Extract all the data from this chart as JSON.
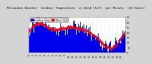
{
  "title": "Milwaukee Weather Outdoor Temperature vs Wind Chill per Minute (24 Hours)",
  "bg_color": "#d4d4d4",
  "plot_bg_color": "#ffffff",
  "bar_color": "#0000ee",
  "line_color": "#ff0000",
  "ylim": [
    5,
    75
  ],
  "yticks": [
    5,
    15,
    25,
    35,
    45,
    55,
    65,
    75
  ],
  "n_points": 1440,
  "legend_blue": "Outdoor Temp",
  "legend_red": "Wind Chill",
  "title_fontsize": 3.2,
  "tick_fontsize": 2.8,
  "seed": 42
}
